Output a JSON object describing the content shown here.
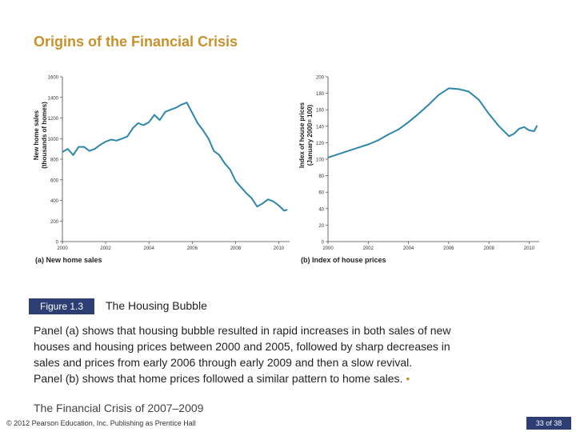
{
  "slide": {
    "title": "Origins of the Financial Crisis",
    "figure_label": "Figure 1.3",
    "figure_title": "The Housing Bubble",
    "caption_lines": [
      "Panel (a) shows that housing bubble resulted in rapid increases in both sales of new",
      "houses and housing prices between 2000 and 2005, followed by sharp decreases in",
      "sales and prices from early 2006 through early 2009 and then a slow revival.",
      "Panel (b) shows that home prices followed a similar pattern to home sales."
    ],
    "caption_bullet": "•",
    "subtitle": "The Financial Crisis of 2007–2009",
    "copyright": "© 2012 Pearson Education, Inc. Publishing as Prentice Hall",
    "page": "33 of 38"
  },
  "colors": {
    "accent": "#c8912c",
    "line": "#2e86ab",
    "badge": "#2c3e73"
  },
  "chart_data": [
    {
      "type": "line",
      "panel_label": "(a) New home sales",
      "ylabel": [
        "New home sales",
        "(thousands of homes)"
      ],
      "xlim": [
        2000,
        2010.5
      ],
      "ylim": [
        0,
        1600
      ],
      "x_ticks": [
        2000,
        2002,
        2004,
        2006,
        2008,
        2010
      ],
      "y_ticks": [
        0,
        200,
        400,
        600,
        800,
        1000,
        1200,
        1400,
        1600
      ],
      "series": [
        {
          "x": [
            2000.0,
            2000.25,
            2000.5,
            2000.75,
            2001.0,
            2001.25,
            2001.5,
            2001.75,
            2002.0,
            2002.25,
            2002.5,
            2002.75,
            2003.0,
            2003.25,
            2003.5,
            2003.75,
            2004.0,
            2004.25,
            2004.5,
            2004.75,
            2005.0,
            2005.25,
            2005.5,
            2005.75,
            2006.0,
            2006.25,
            2006.5,
            2006.75,
            2007.0,
            2007.25,
            2007.5,
            2007.75,
            2008.0,
            2008.25,
            2008.5,
            2008.75,
            2009.0,
            2009.25,
            2009.5,
            2009.75,
            2010.0,
            2010.25,
            2010.4
          ],
          "values": [
            870,
            900,
            840,
            920,
            920,
            880,
            900,
            940,
            970,
            990,
            980,
            1000,
            1020,
            1100,
            1150,
            1130,
            1160,
            1230,
            1180,
            1260,
            1280,
            1300,
            1330,
            1350,
            1250,
            1150,
            1080,
            1000,
            880,
            840,
            760,
            700,
            590,
            530,
            470,
            420,
            340,
            370,
            410,
            390,
            350,
            300,
            310
          ]
        }
      ]
    },
    {
      "type": "line",
      "panel_label": "(b) Index of house prices",
      "ylabel": [
        "Index of house prices",
        "(January 2000= 100)"
      ],
      "xlim": [
        2000,
        2010.5
      ],
      "ylim": [
        0,
        200
      ],
      "x_ticks": [
        2000,
        2002,
        2004,
        2006,
        2008,
        2010
      ],
      "y_ticks": [
        0,
        20,
        40,
        60,
        80,
        100,
        120,
        140,
        160,
        180,
        200
      ],
      "series": [
        {
          "x": [
            2000.0,
            2000.5,
            2001.0,
            2001.5,
            2002.0,
            2002.5,
            2003.0,
            2003.5,
            2004.0,
            2004.5,
            2005.0,
            2005.5,
            2006.0,
            2006.5,
            2007.0,
            2007.5,
            2008.0,
            2008.5,
            2009.0,
            2009.25,
            2009.5,
            2009.75,
            2010.0,
            2010.25,
            2010.4
          ],
          "values": [
            102,
            106,
            110,
            114,
            118,
            123,
            130,
            136,
            145,
            155,
            166,
            178,
            186,
            185,
            182,
            172,
            155,
            140,
            128,
            131,
            137,
            139,
            135,
            134,
            141
          ]
        }
      ]
    }
  ]
}
